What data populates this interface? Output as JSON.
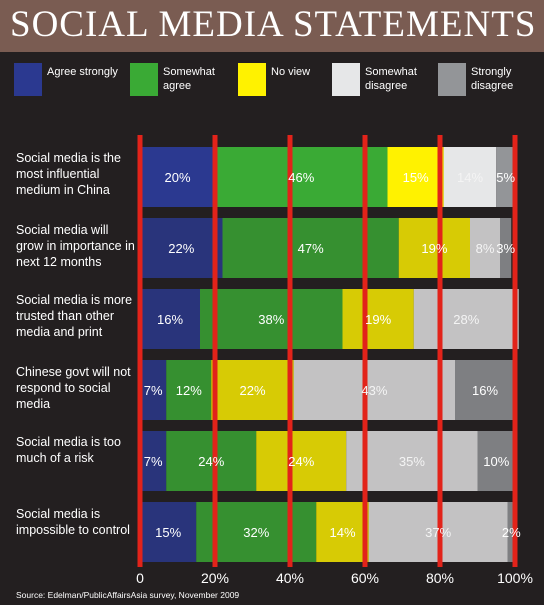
{
  "title": "SOCIAL MEDIA STATEMENTS",
  "legend": [
    {
      "label": "Agree strongly",
      "color": "#2b3990"
    },
    {
      "label": "Somewhat agree",
      "color": "#3aaa35"
    },
    {
      "label": "No view",
      "color": "#fff200"
    },
    {
      "label": "Somewhat disagree",
      "color": "#e6e7e8"
    },
    {
      "label": "Strongly disagree",
      "color": "#939598"
    }
  ],
  "source": "Source: Edelman/PublicAffairsAsia survey, November 2009",
  "chart_data": {
    "type": "bar",
    "orientation": "horizontal",
    "stacked": true,
    "title": "SOCIAL MEDIA STATEMENTS",
    "categories": [
      "Social media is the most influential medium in China",
      "Social media will grow in importance in next 12 months",
      "Social media is more trusted than other media and print",
      "Chinese govt will not respond to social media",
      "Social media is too much of a risk",
      "Social media is impossible to control"
    ],
    "series": [
      {
        "name": "Agree strongly",
        "values": [
          20,
          22,
          16,
          7,
          7,
          15
        ]
      },
      {
        "name": "Somewhat agree",
        "values": [
          46,
          47,
          38,
          12,
          24,
          32
        ]
      },
      {
        "name": "No view",
        "values": [
          15,
          19,
          19,
          22,
          24,
          14
        ]
      },
      {
        "name": "Somewhat disagree",
        "values": [
          14,
          8,
          28,
          43,
          35,
          37
        ]
      },
      {
        "name": "Strongly disagree",
        "values": [
          5,
          3,
          0,
          16,
          10,
          2
        ]
      }
    ],
    "value_labels": [
      [
        "20%",
        "46%",
        "15%",
        "14%",
        "5%"
      ],
      [
        "22%",
        "47%",
        "19%",
        "8%",
        "3%"
      ],
      [
        "16%",
        "38%",
        "19%",
        "28%",
        ""
      ],
      [
        "7%",
        "12%",
        "22%",
        "43%",
        "16%"
      ],
      [
        "7%",
        "24%",
        "24%",
        "35%",
        "10%"
      ],
      [
        "15%",
        "32%",
        "14%",
        "37%",
        "2%"
      ]
    ],
    "x_ticks": [
      "0",
      "20%",
      "40%",
      "60%",
      "80%",
      "100%"
    ],
    "xlim": [
      0,
      100
    ],
    "grid": true,
    "gridline_color": "#e2231a",
    "legend_position": "top"
  }
}
